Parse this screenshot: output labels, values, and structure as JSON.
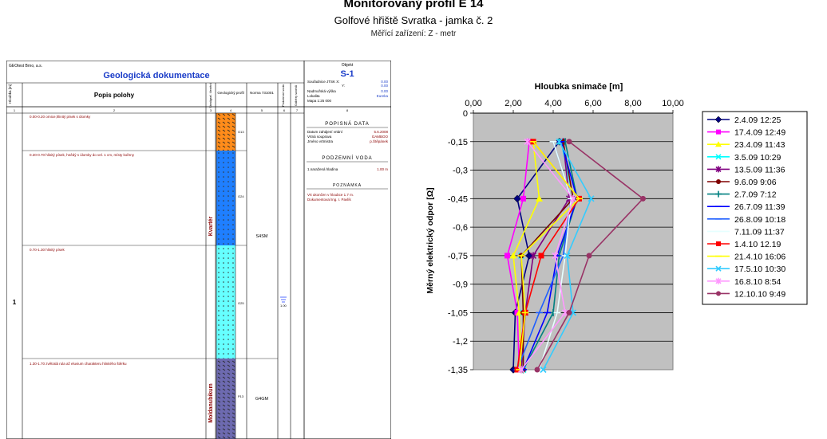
{
  "titles": {
    "main": "Monitorovaný profil E 14",
    "sub": "Golfové hřiště Svratka - jamka č. 2",
    "device": "Měřící zařízení: Z - metr"
  },
  "geo": {
    "company": "GEOtest Brno, a.s.",
    "heading": "Geologická dokumentace",
    "object_label": "Objekt",
    "object_code": "S-1",
    "col_depth": "Hloubka [m]",
    "col_desc": "Popis polohy",
    "col_strat": "Stratigraf. členění",
    "col_profile": "Geologický profil",
    "col_norm": "Norma 731001",
    "col_water": "Podzemní voda",
    "col_samples": "Odběry vzorků",
    "col_nums": [
      "1",
      "2",
      "3",
      "4",
      "5",
      "6",
      "7",
      "8"
    ],
    "coords": [
      {
        "label": "Souřadnice JTSK X:",
        "value": "0.00"
      },
      {
        "label": "Y:",
        "value": "0.00"
      },
      {
        "label": "Nadmořská výška",
        "value": "0.00"
      },
      {
        "label": "Lokalita",
        "value": "Eureka"
      },
      {
        "label": "Mapa 1:25 000",
        "value": ""
      }
    ],
    "layers": [
      {
        "text": "0.00-0.20 ornice,hlinitý písek s úlomky",
        "code": "G13"
      },
      {
        "text": "0.20-0.70 hlinitý písek, hnědý s úlomky do vel. 1 cm, místy kořeny",
        "code": "G24"
      },
      {
        "text": "0.70-1.30 hlinitý písek",
        "code": "G25"
      },
      {
        "text": "1.30-1.70 zvětralá rula až eluvium charakteru hlinitého štěrku",
        "code": "P13"
      }
    ],
    "norm_top": "S4SM",
    "norm_bottom": "G4GM",
    "strat_top": "Kvartér",
    "strat_bottom": "Moldanubikum",
    "water_value": "1.00",
    "depth_ticks": [
      "1"
    ],
    "popisna_title": "POPISNÁ DATA",
    "popisna": [
      {
        "label": "Datum zahájení vrtání",
        "value": "5.6.2008"
      },
      {
        "label": "Vrtná souprava",
        "value": "GAMBOO"
      },
      {
        "label": "Jméno vrtmistra",
        "value": "p.Štěpánek"
      }
    ],
    "voda_title": "PODZEMNÍ VODA",
    "voda": [
      {
        "label": "1.naražená hladina",
        "value": "1.00 m"
      }
    ],
    "poznamka_title": "POZNÁMKA",
    "poznamka": [
      "Vrt ukončen v hloubce 1.7 m.",
      "Dokumentoval Ing. I. Pavlík"
    ]
  },
  "chart_data": {
    "type": "line",
    "title": "Hloubka snimače [m]",
    "xlabel": "Hloubka snimače [m]",
    "ylabel": "Měrný elektrický odpor [Ω]",
    "xlim": [
      0,
      10
    ],
    "ylim": [
      -1.35,
      0
    ],
    "x_ticks": [
      "0,00",
      "2,00",
      "4,00",
      "6,00",
      "8,00",
      "10,00"
    ],
    "y_ticks": [
      "0",
      "-0,15",
      "-0,3",
      "-0,45",
      "-0,6",
      "-0,75",
      "-0,9",
      "-1,05",
      "-1,2",
      "-1,35"
    ],
    "depths": [
      -0.15,
      -0.45,
      -0.75,
      -1.05,
      -1.35
    ],
    "grid": true,
    "legend_position": "right",
    "plot_background": "#c0c0c0",
    "series": [
      {
        "name": "2.4.09 12:25",
        "color": "#000080",
        "marker": "diamond",
        "values": [
          4.3,
          2.2,
          2.8,
          2.1,
          2.0
        ]
      },
      {
        "name": "17.4.09 12:49",
        "color": "#ff00ff",
        "marker": "square",
        "values": [
          2.8,
          2.5,
          1.7,
          2.2,
          2.3
        ]
      },
      {
        "name": "23.4.09 11:43",
        "color": "#ffff00",
        "marker": "triangle",
        "values": [
          3.0,
          3.3,
          2.0,
          2.3,
          2.4
        ]
      },
      {
        "name": "3.5.09 10:29",
        "color": "#00ffff",
        "marker": "x",
        "values": [
          4.4,
          5.0,
          2.4,
          2.5,
          2.5
        ]
      },
      {
        "name": "13.5.09 11:36",
        "color": "#800080",
        "marker": "star",
        "values": [
          4.5,
          4.8,
          3.0,
          2.6,
          2.4
        ]
      },
      {
        "name": "9.6.09 9:06",
        "color": "#800000",
        "marker": "circle",
        "values": [
          4.5,
          5.0,
          2.4,
          2.5,
          2.5
        ]
      },
      {
        "name": "2.7.09 7:12",
        "color": "#008080",
        "marker": "plus",
        "values": [
          4.6,
          5.2,
          4.3,
          4.0,
          2.5
        ]
      },
      {
        "name": "26.7.09 11:39",
        "color": "#0000ff",
        "marker": "dash",
        "values": [
          4.4,
          5.2,
          4.2,
          3.7,
          2.5
        ]
      },
      {
        "name": "26.8.09 10:18",
        "color": "#1f5fff",
        "marker": "dash",
        "values": [
          4.0,
          4.9,
          4.5,
          3.3,
          2.2
        ]
      },
      {
        "name": "7.11.09 11:37",
        "color": "#e6ffff",
        "marker": "dash",
        "values": [
          4.0,
          4.9,
          4.6,
          4.2,
          3.3
        ]
      },
      {
        "name": "1.4.10 12.19",
        "color": "#ff0000",
        "marker": "square",
        "values": [
          3.0,
          5.3,
          3.4,
          2.6,
          2.2
        ]
      },
      {
        "name": "21.4.10 16:06",
        "color": "#ffff00",
        "marker": "dash",
        "values": [
          3.0,
          5.3,
          2.4,
          2.6,
          2.3
        ]
      },
      {
        "name": "17.5.10 10:30",
        "color": "#33ccff",
        "marker": "x",
        "values": [
          4.3,
          5.9,
          4.7,
          5.0,
          3.5
        ]
      },
      {
        "name": "16.8.10 8:54",
        "color": "#ff99ff",
        "marker": "star",
        "values": [
          2.7,
          5.0,
          4.1,
          4.6,
          2.4
        ]
      },
      {
        "name": "12.10.10 9:49",
        "color": "#993366",
        "marker": "circle",
        "values": [
          4.8,
          8.5,
          5.8,
          4.8,
          3.2
        ]
      }
    ]
  }
}
